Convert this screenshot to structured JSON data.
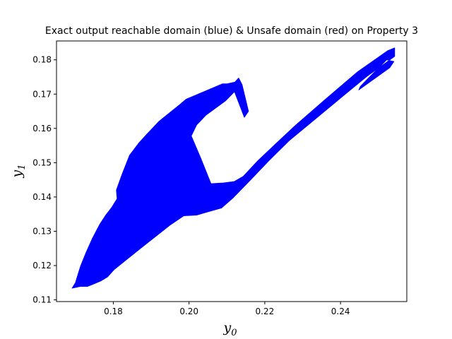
{
  "chart_data": {
    "type": "area",
    "title": "Exact output reachable domain (blue) & Unsafe domain (red) on Property 3",
    "xlabel": {
      "var": "y",
      "sub": "0"
    },
    "ylabel": {
      "var": "y",
      "sub": "1"
    },
    "xlim": [
      0.165,
      0.2575
    ],
    "ylim": [
      0.1095,
      0.1855
    ],
    "xticks": [
      0.18,
      0.2,
      0.22,
      0.24
    ],
    "xtick_labels": [
      "0.18",
      "0.20",
      "0.22",
      "0.24"
    ],
    "yticks": [
      0.11,
      0.12,
      0.13,
      0.14,
      0.15,
      0.16,
      0.17,
      0.18
    ],
    "ytick_labels": [
      "0.11",
      "0.12",
      "0.13",
      "0.14",
      "0.15",
      "0.16",
      "0.17",
      "0.18"
    ],
    "grid": false,
    "series": [
      {
        "color": "#0000ff",
        "region": [
          [
            0.1691,
            0.1134
          ],
          [
            0.1713,
            0.1139
          ],
          [
            0.1732,
            0.1139
          ],
          [
            0.1767,
            0.1155
          ],
          [
            0.1785,
            0.1167
          ],
          [
            0.1802,
            0.1188
          ],
          [
            0.1872,
            0.125
          ],
          [
            0.195,
            0.1318
          ],
          [
            0.1986,
            0.1345
          ],
          [
            0.202,
            0.1347
          ],
          [
            0.2048,
            0.1356
          ],
          [
            0.2086,
            0.1368
          ],
          [
            0.2116,
            0.1397
          ],
          [
            0.216,
            0.1447
          ],
          [
            0.2211,
            0.1506
          ],
          [
            0.2264,
            0.1564
          ],
          [
            0.2332,
            0.1626
          ],
          [
            0.2405,
            0.1693
          ],
          [
            0.247,
            0.1752
          ],
          [
            0.2543,
            0.181
          ],
          [
            0.2543,
            0.1835
          ],
          [
            0.2525,
            0.1827
          ],
          [
            0.2445,
            0.1765
          ],
          [
            0.2359,
            0.1684
          ],
          [
            0.228,
            0.1608
          ],
          [
            0.2224,
            0.155
          ],
          [
            0.2181,
            0.1505
          ],
          [
            0.2143,
            0.146
          ],
          [
            0.2119,
            0.1445
          ],
          [
            0.209,
            0.1441
          ],
          [
            0.2058,
            0.1439
          ],
          [
            0.203,
            0.1516
          ],
          [
            0.2006,
            0.1578
          ],
          [
            0.202,
            0.161
          ],
          [
            0.2045,
            0.1639
          ],
          [
            0.2096,
            0.168
          ],
          [
            0.212,
            0.1707
          ],
          [
            0.2146,
            0.1632
          ],
          [
            0.2157,
            0.165
          ],
          [
            0.214,
            0.1728
          ],
          [
            0.2131,
            0.1747
          ],
          [
            0.2121,
            0.1735
          ],
          [
            0.21,
            0.173
          ],
          [
            0.2088,
            0.173
          ],
          [
            0.1992,
            0.1685
          ],
          [
            0.1975,
            0.1669
          ],
          [
            0.192,
            0.162
          ],
          [
            0.189,
            0.1585
          ],
          [
            0.1867,
            0.1557
          ],
          [
            0.1843,
            0.1522
          ],
          [
            0.1822,
            0.1463
          ],
          [
            0.1808,
            0.142
          ],
          [
            0.181,
            0.1395
          ],
          [
            0.1796,
            0.137
          ],
          [
            0.178,
            0.1347
          ],
          [
            0.1764,
            0.132
          ],
          [
            0.1745,
            0.128
          ],
          [
            0.1728,
            0.1238
          ],
          [
            0.1714,
            0.12
          ],
          [
            0.1706,
            0.1172
          ],
          [
            0.17,
            0.115
          ]
        ],
        "hole": [
          [
            0.2448,
            0.1712
          ],
          [
            0.253,
            0.1777
          ],
          [
            0.2541,
            0.1795
          ],
          [
            0.2522,
            0.18
          ],
          [
            0.2472,
            0.1745
          ],
          [
            0.2452,
            0.1722
          ]
        ]
      }
    ]
  }
}
